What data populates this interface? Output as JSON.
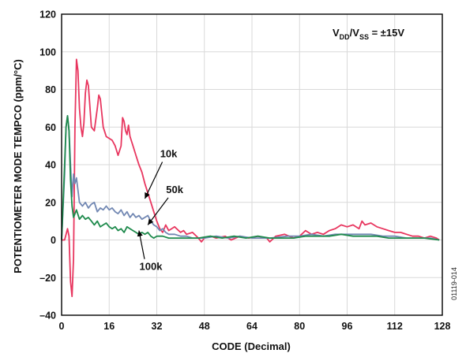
{
  "chart_data": {
    "type": "line",
    "title": "",
    "xlabel": "CODE (Decimal)",
    "ylabel": "POTENTIOMETER MODE TEMPCO (ppm/°C)",
    "xlim": [
      0,
      128
    ],
    "ylim": [
      -40,
      120
    ],
    "xticks": [
      "0",
      "16",
      "32",
      "48",
      "64",
      "80",
      "96",
      "112",
      "128"
    ],
    "yticks": [
      "120",
      "100",
      "80",
      "60",
      "40",
      "20",
      "0",
      "–20",
      "–40"
    ],
    "grid": true,
    "legend": "none",
    "condition": {
      "v1": "V",
      "s1": "DD",
      "mid": "/V",
      "s2": "SS",
      "rest": " = ±15V"
    },
    "side_note": "01119-014",
    "series": [
      {
        "name": "10k",
        "color": "#e8365f",
        "points": [
          [
            0,
            0
          ],
          [
            1,
            0
          ],
          [
            2,
            6
          ],
          [
            2.5,
            2
          ],
          [
            3,
            -22
          ],
          [
            3.5,
            -30
          ],
          [
            4,
            -10
          ],
          [
            4.5,
            60
          ],
          [
            5,
            96
          ],
          [
            5.5,
            90
          ],
          [
            6,
            70
          ],
          [
            6.5,
            60
          ],
          [
            7,
            55
          ],
          [
            7.5,
            62
          ],
          [
            8,
            78
          ],
          [
            8.5,
            85
          ],
          [
            9,
            82
          ],
          [
            10,
            60
          ],
          [
            11,
            58
          ],
          [
            12,
            70
          ],
          [
            12.5,
            77
          ],
          [
            13,
            75
          ],
          [
            14,
            60
          ],
          [
            15,
            55
          ],
          [
            16,
            54
          ],
          [
            17,
            53
          ],
          [
            18,
            50
          ],
          [
            19,
            45
          ],
          [
            20,
            50
          ],
          [
            20.5,
            65
          ],
          [
            21,
            63
          ],
          [
            21.5,
            58
          ],
          [
            22,
            56
          ],
          [
            22.5,
            61
          ],
          [
            23,
            55
          ],
          [
            24,
            50
          ],
          [
            25,
            45
          ],
          [
            26,
            40
          ],
          [
            27,
            36
          ],
          [
            28,
            30
          ],
          [
            29,
            25
          ],
          [
            30,
            20
          ],
          [
            31,
            15
          ],
          [
            32,
            10
          ],
          [
            33,
            6
          ],
          [
            34,
            4
          ],
          [
            35,
            8
          ],
          [
            36,
            5
          ],
          [
            38,
            7
          ],
          [
            40,
            4
          ],
          [
            41,
            5
          ],
          [
            42,
            3
          ],
          [
            44,
            4
          ],
          [
            46,
            1
          ],
          [
            47,
            -1
          ],
          [
            48,
            1
          ],
          [
            50,
            2
          ],
          [
            52,
            1
          ],
          [
            55,
            2
          ],
          [
            57,
            0
          ],
          [
            60,
            2
          ],
          [
            63,
            1
          ],
          [
            66,
            2
          ],
          [
            69,
            1
          ],
          [
            70,
            -1
          ],
          [
            72,
            2
          ],
          [
            75,
            3
          ],
          [
            78,
            1
          ],
          [
            80,
            2
          ],
          [
            82,
            5
          ],
          [
            84,
            3
          ],
          [
            86,
            4
          ],
          [
            88,
            3
          ],
          [
            90,
            5
          ],
          [
            92,
            6
          ],
          [
            94,
            8
          ],
          [
            96,
            7
          ],
          [
            98,
            8
          ],
          [
            100,
            6
          ],
          [
            101,
            10
          ],
          [
            102,
            8
          ],
          [
            104,
            9
          ],
          [
            106,
            7
          ],
          [
            108,
            6
          ],
          [
            110,
            5
          ],
          [
            112,
            4
          ],
          [
            114,
            4
          ],
          [
            116,
            3
          ],
          [
            118,
            2
          ],
          [
            120,
            2
          ],
          [
            122,
            1
          ],
          [
            124,
            2
          ],
          [
            126,
            1
          ],
          [
            127,
            0
          ]
        ]
      },
      {
        "name": "50k",
        "color": "#7288b3",
        "points": [
          [
            0,
            0
          ],
          [
            1,
            35
          ],
          [
            1.5,
            60
          ],
          [
            2,
            66
          ],
          [
            2.5,
            58
          ],
          [
            3,
            40
          ],
          [
            3.5,
            23
          ],
          [
            4,
            35
          ],
          [
            4.5,
            30
          ],
          [
            5,
            33
          ],
          [
            6,
            20
          ],
          [
            7,
            18
          ],
          [
            8,
            20
          ],
          [
            9,
            17
          ],
          [
            10,
            19
          ],
          [
            11,
            20
          ],
          [
            12,
            15
          ],
          [
            13,
            17
          ],
          [
            14,
            16
          ],
          [
            15,
            18
          ],
          [
            16,
            16
          ],
          [
            17,
            17
          ],
          [
            18,
            15
          ],
          [
            19,
            14
          ],
          [
            20,
            16
          ],
          [
            21,
            13
          ],
          [
            22,
            15
          ],
          [
            23,
            12
          ],
          [
            24,
            14
          ],
          [
            25,
            12
          ],
          [
            26,
            13
          ],
          [
            27,
            11
          ],
          [
            28,
            12
          ],
          [
            29,
            13
          ],
          [
            30,
            10
          ],
          [
            31,
            8
          ],
          [
            32,
            7
          ],
          [
            33,
            5
          ],
          [
            34,
            6
          ],
          [
            35,
            4
          ],
          [
            36,
            3
          ],
          [
            38,
            3
          ],
          [
            40,
            2
          ],
          [
            42,
            2
          ],
          [
            44,
            1
          ],
          [
            46,
            1
          ],
          [
            48,
            1
          ],
          [
            52,
            2
          ],
          [
            56,
            1
          ],
          [
            60,
            2
          ],
          [
            64,
            1
          ],
          [
            70,
            1
          ],
          [
            76,
            2
          ],
          [
            80,
            2
          ],
          [
            84,
            3
          ],
          [
            88,
            2
          ],
          [
            92,
            3
          ],
          [
            96,
            3
          ],
          [
            100,
            3
          ],
          [
            104,
            3
          ],
          [
            108,
            2
          ],
          [
            112,
            2
          ],
          [
            116,
            1
          ],
          [
            120,
            1
          ],
          [
            124,
            1
          ],
          [
            127,
            0
          ]
        ]
      },
      {
        "name": "100k",
        "color": "#1e8a4c",
        "points": [
          [
            0,
            0
          ],
          [
            0.5,
            20
          ],
          [
            1,
            40
          ],
          [
            1.5,
            60
          ],
          [
            2,
            66
          ],
          [
            2.5,
            58
          ],
          [
            3,
            32
          ],
          [
            3.5,
            18
          ],
          [
            4,
            12
          ],
          [
            5,
            16
          ],
          [
            6,
            11
          ],
          [
            7,
            13
          ],
          [
            8,
            11
          ],
          [
            9,
            12
          ],
          [
            10,
            10
          ],
          [
            11,
            8
          ],
          [
            12,
            10
          ],
          [
            13,
            7
          ],
          [
            14,
            8
          ],
          [
            15,
            9
          ],
          [
            16,
            7
          ],
          [
            17,
            6
          ],
          [
            18,
            7
          ],
          [
            19,
            5
          ],
          [
            20,
            6
          ],
          [
            21,
            4
          ],
          [
            22,
            7
          ],
          [
            23,
            6
          ],
          [
            24,
            5
          ],
          [
            25,
            4
          ],
          [
            26,
            3
          ],
          [
            27,
            4
          ],
          [
            28,
            3
          ],
          [
            29,
            4
          ],
          [
            30,
            2
          ],
          [
            31,
            1
          ],
          [
            32,
            2
          ],
          [
            34,
            2
          ],
          [
            36,
            1
          ],
          [
            38,
            1
          ],
          [
            40,
            1
          ],
          [
            42,
            1
          ],
          [
            46,
            1
          ],
          [
            50,
            2
          ],
          [
            54,
            1
          ],
          [
            58,
            2
          ],
          [
            62,
            1
          ],
          [
            66,
            2
          ],
          [
            70,
            1
          ],
          [
            74,
            1
          ],
          [
            78,
            1
          ],
          [
            82,
            2
          ],
          [
            86,
            2
          ],
          [
            90,
            2
          ],
          [
            94,
            3
          ],
          [
            98,
            2
          ],
          [
            102,
            2
          ],
          [
            106,
            2
          ],
          [
            110,
            1
          ],
          [
            114,
            1
          ],
          [
            118,
            1
          ],
          [
            122,
            1
          ],
          [
            127,
            0
          ]
        ]
      }
    ],
    "annotations": [
      {
        "text": "10k",
        "target": [
          28,
          22
        ],
        "label_at": [
          36,
          44
        ]
      },
      {
        "text": "50k",
        "target": [
          29,
          8
        ],
        "label_at": [
          38,
          25
        ]
      },
      {
        "text": "100k",
        "target": [
          26,
          5
        ],
        "label_at": [
          30,
          -16
        ]
      }
    ]
  }
}
